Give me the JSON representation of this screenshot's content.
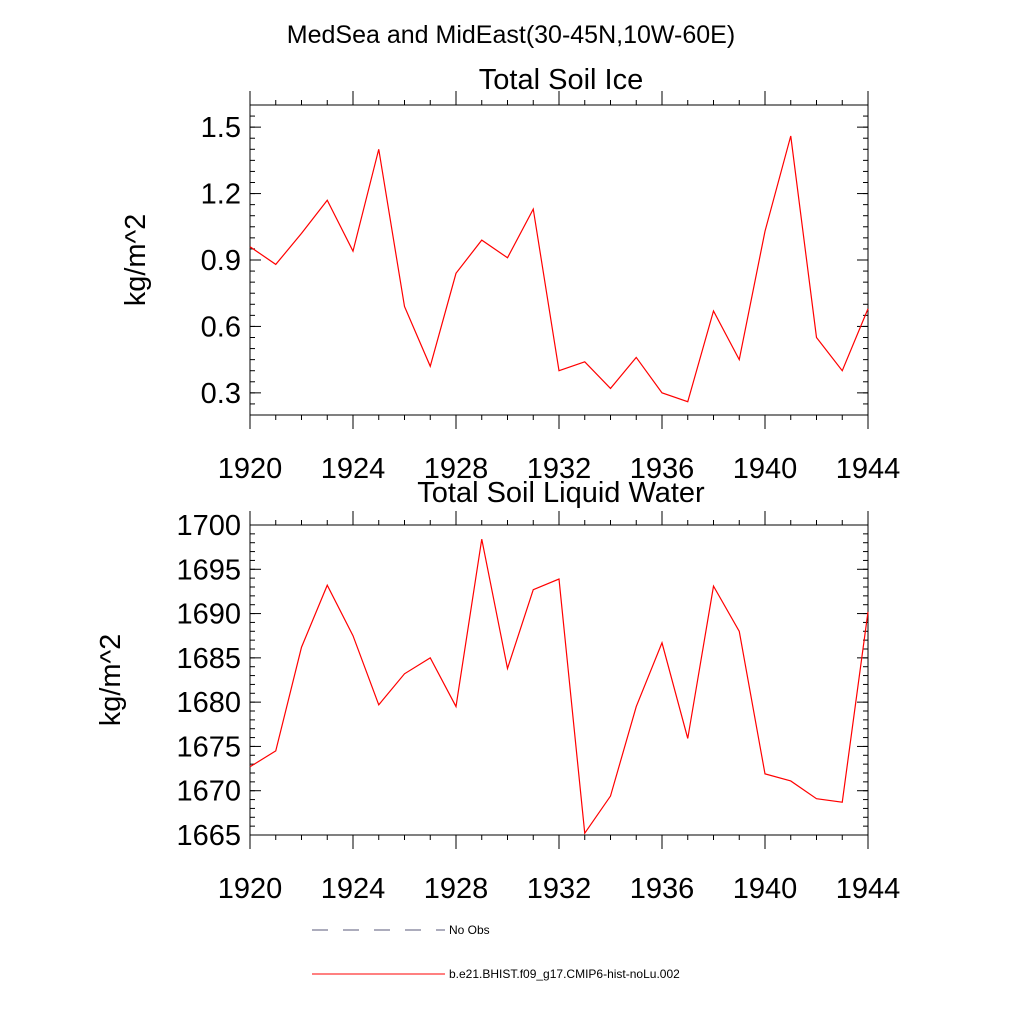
{
  "figure": {
    "suptitle": "MedSea and MidEast(30-45N,10W-60E)"
  },
  "legend": {
    "entries": [
      {
        "label": "No Obs",
        "color": "#5a5a78",
        "dash": true
      },
      {
        "label": "b.e21.BHIST.f09_g17.CMIP6-hist-noLu.002",
        "color": "#ff0000",
        "dash": false
      }
    ]
  },
  "chart_data": [
    {
      "type": "line",
      "title": "Total Soil Ice",
      "xlabel": "",
      "ylabel": "kg/m^2",
      "xlim": [
        1920,
        1944
      ],
      "ylim": [
        0.2,
        1.6
      ],
      "xticks": [
        1920,
        1924,
        1928,
        1932,
        1936,
        1940,
        1944
      ],
      "yticks": [
        0.3,
        0.6,
        0.9,
        1.2,
        1.5
      ],
      "ytick_labels": [
        "0.3",
        "0.6",
        "0.9",
        "1.2",
        "1.5"
      ],
      "y_minor_step": 0.05,
      "x_minor_step": 1,
      "grid": false,
      "series": [
        {
          "color": "#ff0000",
          "x": [
            1920,
            1921,
            1922,
            1923,
            1924,
            1925,
            1926,
            1927,
            1928,
            1929,
            1930,
            1931,
            1932,
            1933,
            1934,
            1935,
            1936,
            1937,
            1938,
            1939,
            1940,
            1941,
            1942,
            1943,
            1944
          ],
          "values": [
            0.96,
            0.88,
            1.02,
            1.17,
            0.94,
            1.4,
            0.69,
            0.42,
            0.84,
            0.99,
            0.91,
            1.13,
            0.4,
            0.44,
            0.32,
            0.46,
            0.3,
            0.26,
            0.67,
            0.45,
            1.03,
            1.46,
            0.55,
            0.4,
            0.68
          ]
        }
      ]
    },
    {
      "type": "line",
      "title": "Total Soil Liquid Water",
      "xlabel": "",
      "ylabel": "kg/m^2",
      "xlim": [
        1920,
        1944
      ],
      "ylim": [
        1665,
        1700
      ],
      "xticks": [
        1920,
        1924,
        1928,
        1932,
        1936,
        1940,
        1944
      ],
      "yticks": [
        1665,
        1670,
        1675,
        1680,
        1685,
        1690,
        1695,
        1700
      ],
      "ytick_labels": [
        "1665",
        "1670",
        "1675",
        "1680",
        "1685",
        "1690",
        "1695",
        "1700"
      ],
      "y_minor_step": 1,
      "x_minor_step": 1,
      "grid": false,
      "series": [
        {
          "color": "#ff0000",
          "x": [
            1920,
            1921,
            1922,
            1923,
            1924,
            1925,
            1926,
            1927,
            1928,
            1929,
            1930,
            1931,
            1932,
            1933,
            1934,
            1935,
            1936,
            1937,
            1938,
            1939,
            1940,
            1941,
            1942,
            1943,
            1944
          ],
          "values": [
            1672.7,
            1674.5,
            1686.2,
            1693.2,
            1687.5,
            1679.7,
            1683.2,
            1685.0,
            1679.5,
            1698.4,
            1683.8,
            1692.7,
            1693.9,
            1665.2,
            1669.4,
            1679.5,
            1686.7,
            1675.9,
            1693.1,
            1688.0,
            1671.9,
            1671.1,
            1669.1,
            1668.7,
            1690.2
          ]
        }
      ]
    }
  ]
}
